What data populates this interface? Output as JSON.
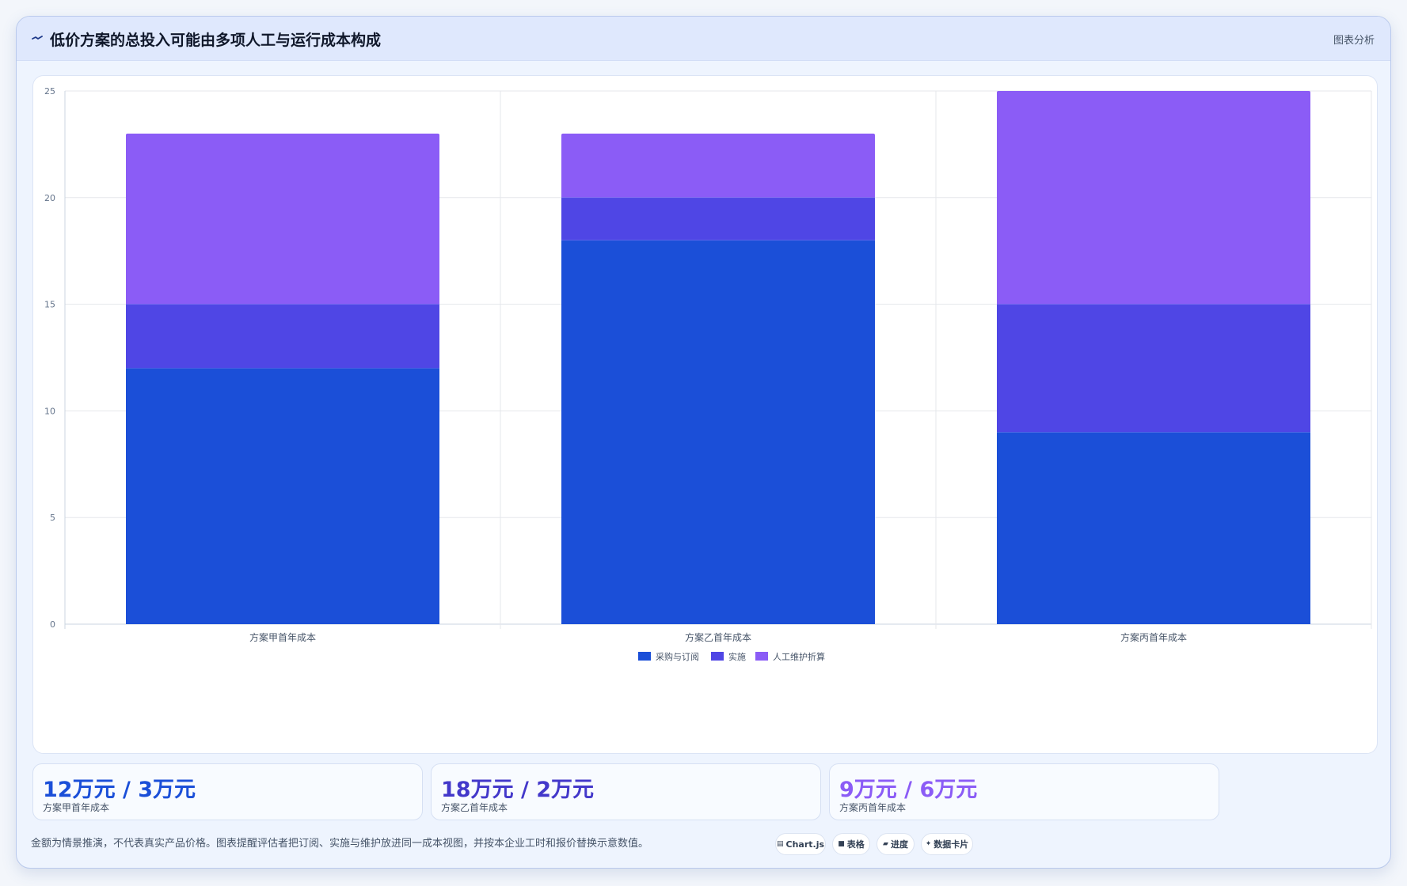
{
  "header": {
    "title": "低价方案的总投入可能由多项人工与运行成本构成",
    "tag": "图表分析"
  },
  "chart_data": {
    "type": "bar",
    "stacked": true,
    "categories": [
      "方案甲首年成本",
      "方案乙首年成本",
      "方案丙首年成本"
    ],
    "series": [
      {
        "name": "采购与订阅",
        "values": [
          12,
          18,
          9
        ],
        "color": "#1b4fd8"
      },
      {
        "name": "实施",
        "values": [
          3,
          2,
          6
        ],
        "color": "#4f46e5"
      },
      {
        "name": "人工维护折算",
        "values": [
          8,
          3,
          10
        ],
        "color": "#8b5cf6"
      }
    ],
    "y_ticks": [
      0,
      5,
      10,
      15,
      20,
      25
    ],
    "ylim": [
      0,
      25
    ],
    "grid": true,
    "legend_position": "bottom"
  },
  "stats": [
    {
      "value": "12万元 / 3万元",
      "label": "方案甲首年成本",
      "color": "#1b4fd8"
    },
    {
      "value": "18万元 / 2万元",
      "label": "方案乙首年成本",
      "color": "#4338ca"
    },
    {
      "value": "9万元 / 6万元",
      "label": "方案丙首年成本",
      "color": "#8b5cf6"
    }
  ],
  "footer": {
    "note": "金额为情景推演，不代表真实产品价格。图表提醒评估者把订阅、实施与维护放进同一成本视图，并按本企业工时和报价替换示意数值。",
    "chips": [
      {
        "icon": "chart-icon",
        "glyph": "▤",
        "label": "Chart.js"
      },
      {
        "icon": "table-icon",
        "glyph": "■",
        "label": "表格"
      },
      {
        "icon": "progress-icon",
        "glyph": "▰",
        "label": "进度"
      },
      {
        "icon": "sparkle-icon",
        "glyph": "✦",
        "label": "数据卡片"
      }
    ]
  }
}
